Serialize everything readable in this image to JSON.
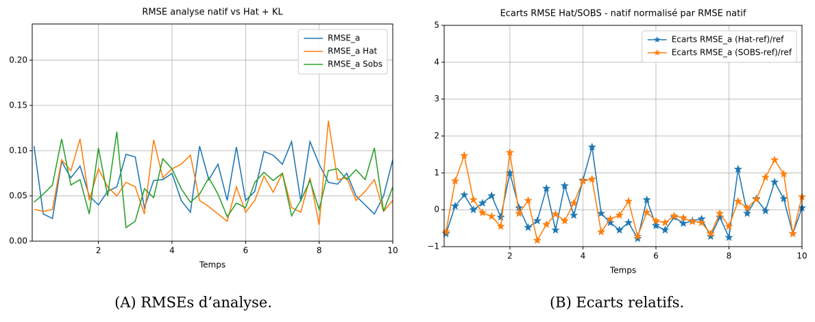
{
  "chart_data": [
    {
      "type": "line",
      "title": "RMSE analyse natif vs Hat + KL",
      "x_label": "Temps",
      "caption": "(A) RMSEs d’analyse.",
      "x": [
        0.25,
        0.5,
        0.75,
        1,
        1.25,
        1.5,
        1.75,
        2,
        2.25,
        2.5,
        2.75,
        3,
        3.25,
        3.5,
        3.75,
        4,
        4.25,
        4.5,
        4.75,
        5,
        5.25,
        5.5,
        5.75,
        6,
        6.25,
        6.5,
        6.75,
        7,
        7.25,
        7.5,
        7.75,
        8,
        8.25,
        8.5,
        8.75,
        9,
        9.25,
        9.5,
        9.75,
        10
      ],
      "series": [
        {
          "name": "RMSE_a",
          "color": "#1f77b4",
          "values": [
            0.105,
            0.03,
            0.025,
            0.088,
            0.07,
            0.083,
            0.05,
            0.04,
            0.055,
            0.06,
            0.096,
            0.093,
            0.037,
            0.067,
            0.068,
            0.075,
            0.045,
            0.032,
            0.105,
            0.068,
            0.085,
            0.045,
            0.104,
            0.045,
            0.055,
            0.099,
            0.095,
            0.085,
            0.11,
            0.044,
            0.11,
            0.085,
            0.065,
            0.063,
            0.075,
            0.05,
            0.04,
            0.03,
            0.05,
            0.09
          ]
        },
        {
          "name": "RMSE_a Hat",
          "color": "#ff7f0e",
          "values": [
            0.035,
            0.033,
            0.035,
            0.09,
            0.078,
            0.113,
            0.045,
            0.08,
            0.06,
            0.05,
            0.065,
            0.06,
            0.03,
            0.112,
            0.07,
            0.08,
            0.085,
            0.095,
            0.045,
            0.038,
            0.03,
            0.022,
            0.06,
            0.032,
            0.045,
            0.072,
            0.054,
            0.075,
            0.037,
            0.032,
            0.07,
            0.018,
            0.133,
            0.068,
            0.07,
            0.045,
            0.055,
            0.068,
            0.033,
            0.045
          ]
        },
        {
          "name": "RMSE_a Sobs",
          "color": "#2ca02c",
          "values": [
            0.043,
            0.052,
            0.062,
            0.113,
            0.062,
            0.068,
            0.03,
            0.103,
            0.05,
            0.121,
            0.015,
            0.022,
            0.058,
            0.048,
            0.091,
            0.08,
            0.058,
            0.043,
            0.052,
            0.07,
            0.052,
            0.027,
            0.042,
            0.037,
            0.065,
            0.076,
            0.067,
            0.075,
            0.028,
            0.045,
            0.067,
            0.035,
            0.078,
            0.08,
            0.068,
            0.079,
            0.068,
            0.103,
            0.033,
            0.06
          ]
        }
      ],
      "xlim": [
        0.2,
        10
      ],
      "xticks": [
        2,
        4,
        6,
        8,
        10
      ],
      "ylim": [
        0,
        0.24
      ],
      "yticks": [
        {
          "value": 0,
          "label": "0.00"
        },
        {
          "value": 0.05,
          "label": "0.05"
        },
        {
          "value": 0.1,
          "label": "0.10"
        },
        {
          "value": 0.15,
          "label": "0.15"
        },
        {
          "value": 0.2,
          "label": "0.20"
        }
      ],
      "grid": true,
      "legend": "upper right"
    },
    {
      "type": "line",
      "title": "Ecarts RMSE Hat/SOBS - natif normalisé par RMSE natif",
      "x_label": "Temps",
      "caption": "(B) Ecarts relatifs.",
      "marker": "star",
      "x": [
        0.25,
        0.5,
        0.75,
        1,
        1.25,
        1.5,
        1.75,
        2,
        2.25,
        2.5,
        2.75,
        3,
        3.25,
        3.5,
        3.75,
        4,
        4.25,
        4.5,
        4.75,
        5,
        5.25,
        5.5,
        5.75,
        6,
        6.25,
        6.5,
        6.75,
        7,
        7.25,
        7.5,
        7.75,
        8,
        8.25,
        8.5,
        8.75,
        9,
        9.25,
        9.5,
        9.75,
        10
      ],
      "series": [
        {
          "name": "Ecarts RMSE_a (Hat-ref)/ref",
          "color": "#1f77b4",
          "values": [
            -0.65,
            0.1,
            0.4,
            0.0,
            0.18,
            0.38,
            -0.2,
            1.0,
            0.05,
            -0.48,
            -0.3,
            0.58,
            -0.55,
            0.65,
            -0.15,
            0.8,
            1.7,
            -0.1,
            -0.35,
            -0.55,
            -0.35,
            -0.78,
            0.27,
            -0.43,
            -0.55,
            -0.2,
            -0.37,
            -0.3,
            -0.25,
            -0.72,
            -0.2,
            -0.75,
            1.1,
            -0.1,
            0.3,
            -0.03,
            0.75,
            0.3,
            -0.65,
            0.05
          ]
        },
        {
          "name": "Ecarts RMSE_a (SOBS-ref)/ref",
          "color": "#ff7f0e",
          "values": [
            -0.6,
            0.78,
            1.47,
            0.27,
            -0.08,
            -0.18,
            -0.45,
            1.55,
            -0.1,
            0.25,
            -0.83,
            -0.4,
            -0.12,
            -0.3,
            0.18,
            0.78,
            0.83,
            -0.6,
            -0.25,
            -0.15,
            0.23,
            -0.72,
            -0.07,
            -0.3,
            -0.35,
            -0.17,
            -0.22,
            -0.32,
            -0.35,
            -0.65,
            -0.1,
            -0.45,
            0.23,
            0.05,
            0.28,
            0.88,
            1.35,
            0.97,
            -0.65,
            0.35
          ]
        }
      ],
      "xlim": [
        0.2,
        10
      ],
      "xticks": [
        2,
        4,
        6,
        8,
        10
      ],
      "ylim": [
        -1,
        5
      ],
      "yticks": [
        {
          "value": -1,
          "label": "−1"
        },
        0,
        1,
        2,
        3,
        4,
        5
      ],
      "grid": true,
      "legend": "upper right"
    }
  ]
}
